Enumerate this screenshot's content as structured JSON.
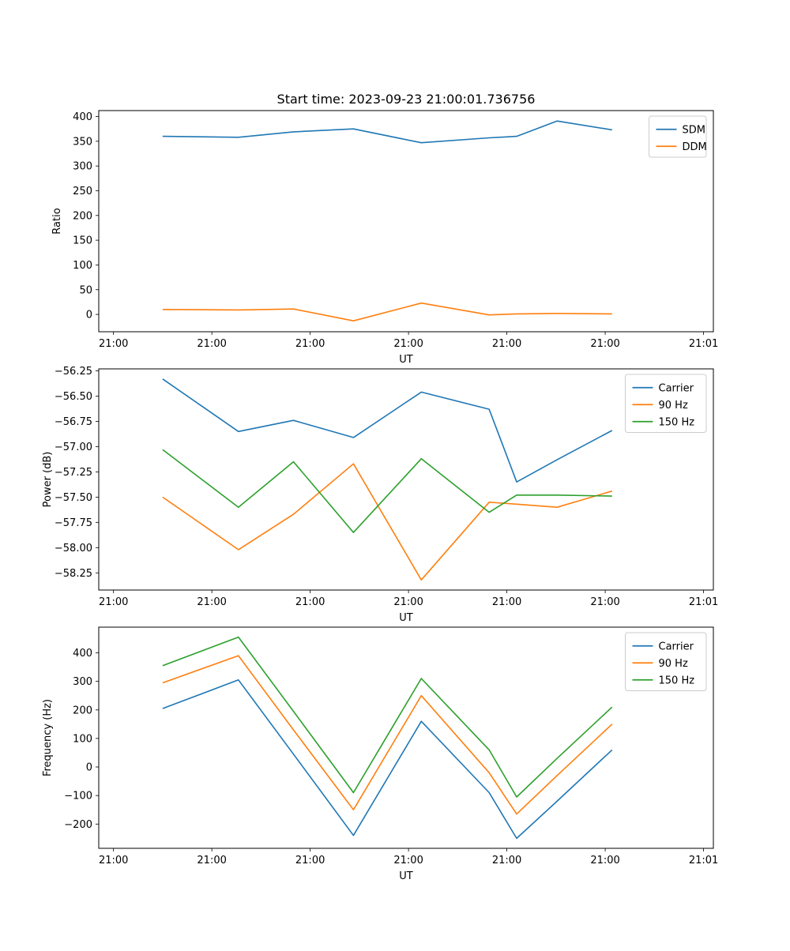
{
  "figure": {
    "background": "#ffffff"
  },
  "chart_data": [
    {
      "type": "line",
      "title": "Start time: 2023-09-23 21:00:01.736756",
      "xlabel": "UT",
      "ylabel": "Ratio",
      "x": [
        5.0,
        12.7,
        18.3,
        24.4,
        31.3,
        38.2,
        41.0,
        45.1,
        50.7
      ],
      "series": [
        {
          "name": "SDM",
          "color": "#1f77b4",
          "values": [
            360,
            358,
            369,
            375,
            347,
            357,
            360,
            391,
            373
          ]
        },
        {
          "name": "DDM",
          "color": "#ff7f0e",
          "values": [
            10,
            9,
            11,
            -13,
            23,
            -1,
            1,
            2,
            1
          ]
        }
      ],
      "xlim": [
        -1.5,
        61.0
      ],
      "ylim": [
        -35,
        412
      ],
      "xticks": {
        "positions": [
          0,
          10,
          20,
          30,
          40,
          50,
          60
        ],
        "labels": [
          "21:00",
          "21:00",
          "21:00",
          "21:00",
          "21:00",
          "21:00",
          "21:01"
        ]
      },
      "yticks": {
        "positions": [
          0,
          50,
          100,
          150,
          200,
          250,
          300,
          350,
          400
        ],
        "labels": [
          "0",
          "50",
          "100",
          "150",
          "200",
          "250",
          "300",
          "350",
          "400"
        ]
      },
      "legend": {
        "location": "upper right",
        "entries": [
          "SDM",
          "DDM"
        ]
      }
    },
    {
      "type": "line",
      "title": "",
      "xlabel": "UT",
      "ylabel": "Power (dB)",
      "x": [
        5.0,
        12.7,
        18.3,
        24.4,
        31.3,
        38.2,
        41.0,
        45.1,
        50.7
      ],
      "series": [
        {
          "name": "Carrier",
          "color": "#1f77b4",
          "values": [
            -56.33,
            -56.85,
            -56.74,
            -56.91,
            -56.46,
            -56.63,
            -57.35,
            -57.13,
            -56.84
          ]
        },
        {
          "name": "90 Hz",
          "color": "#ff7f0e",
          "values": [
            -57.5,
            -58.02,
            -57.67,
            -57.17,
            -58.32,
            -57.55,
            -57.57,
            -57.6,
            -57.44
          ]
        },
        {
          "name": "150 Hz",
          "color": "#2ca02c",
          "values": [
            -57.03,
            -57.6,
            -57.15,
            -57.85,
            -57.12,
            -57.65,
            -57.48,
            -57.48,
            -57.49
          ]
        }
      ],
      "xlim": [
        -1.5,
        61.0
      ],
      "ylim": [
        -58.42,
        -56.23
      ],
      "xticks": {
        "positions": [
          0,
          10,
          20,
          30,
          40,
          50,
          60
        ],
        "labels": [
          "21:00",
          "21:00",
          "21:00",
          "21:00",
          "21:00",
          "21:00",
          "21:01"
        ]
      },
      "yticks": {
        "positions": [
          -58.25,
          -58.0,
          -57.75,
          -57.5,
          -57.25,
          -57.0,
          -56.75,
          -56.5,
          -56.25
        ],
        "labels": [
          "−58.25",
          "−58.00",
          "−57.75",
          "−57.50",
          "−57.25",
          "−57.00",
          "−56.75",
          "−56.50",
          "−56.25"
        ]
      },
      "legend": {
        "location": "upper right",
        "entries": [
          "Carrier",
          "90 Hz",
          "150 Hz"
        ]
      }
    },
    {
      "type": "line",
      "title": "",
      "xlabel": "UT",
      "ylabel": "Frequency (Hz)",
      "x": [
        5.0,
        12.7,
        18.3,
        24.4,
        31.3,
        38.2,
        41.0,
        45.1,
        50.7
      ],
      "series": [
        {
          "name": "Carrier",
          "color": "#1f77b4",
          "values": [
            205,
            305,
            45,
            -240,
            160,
            -90,
            -250,
            -120,
            60
          ]
        },
        {
          "name": "90 Hz",
          "color": "#ff7f0e",
          "values": [
            295,
            390,
            130,
            -150,
            250,
            -20,
            -165,
            -30,
            150
          ]
        },
        {
          "name": "150 Hz",
          "color": "#2ca02c",
          "values": [
            355,
            455,
            195,
            -90,
            310,
            60,
            -105,
            30,
            210
          ]
        }
      ],
      "xlim": [
        -1.5,
        61.0
      ],
      "ylim": [
        -285,
        490
      ],
      "xticks": {
        "positions": [
          0,
          10,
          20,
          30,
          40,
          50,
          60
        ],
        "labels": [
          "21:00",
          "21:00",
          "21:00",
          "21:00",
          "21:00",
          "21:00",
          "21:01"
        ]
      },
      "yticks": {
        "positions": [
          -200,
          -100,
          0,
          100,
          200,
          300,
          400
        ],
        "labels": [
          "−200",
          "−100",
          "0",
          "100",
          "200",
          "300",
          "400"
        ]
      },
      "legend": {
        "location": "upper right",
        "entries": [
          "Carrier",
          "90 Hz",
          "150 Hz"
        ]
      }
    }
  ]
}
